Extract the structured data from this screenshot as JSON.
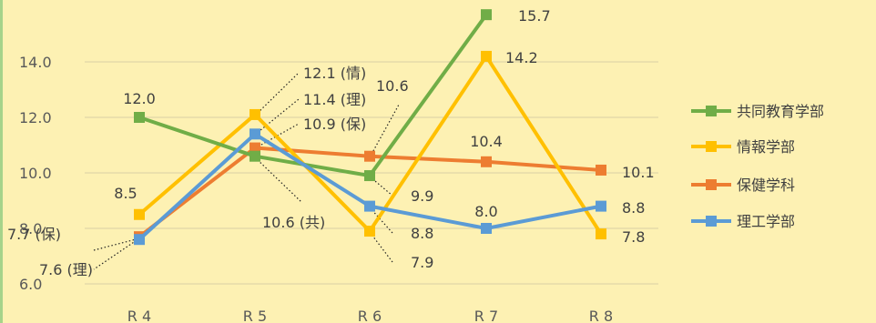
{
  "chart_data": {
    "type": "line",
    "categories": [
      "R 4",
      "R 5",
      "R 6",
      "R 7",
      "R 8"
    ],
    "ylim": [
      6.0,
      15.7
    ],
    "yticks": [
      "6.0",
      "8.0",
      "10.0",
      "12.0",
      "14.0"
    ],
    "grid": true,
    "legend_position": "right",
    "series": [
      {
        "name": "共同教育学部",
        "color": "#70ad47",
        "values": [
          12.0,
          10.6,
          9.9,
          15.7,
          null
        ]
      },
      {
        "name": "情報学部",
        "color": "#ffc000",
        "values": [
          8.5,
          12.1,
          7.9,
          14.2,
          7.8
        ]
      },
      {
        "name": "保健学科",
        "color": "#ed7d31",
        "values": [
          7.7,
          10.9,
          10.6,
          10.4,
          10.1
        ]
      },
      {
        "name": "理工学部",
        "color": "#5b9bd5",
        "values": [
          7.6,
          11.4,
          8.8,
          8.0,
          8.8
        ]
      }
    ],
    "labels": [
      {
        "text": "12.0"
      },
      {
        "text": "8.5"
      },
      {
        "text": "7.7 (保)"
      },
      {
        "text": "7.6 (理)"
      },
      {
        "text": "12.1 (情)"
      },
      {
        "text": "11.4 (理)"
      },
      {
        "text": "10.9 (保)"
      },
      {
        "text": "10.6 (共)"
      },
      {
        "text": "10.6"
      },
      {
        "text": "9.9"
      },
      {
        "text": "8.8"
      },
      {
        "text": "7.9"
      },
      {
        "text": "15.7"
      },
      {
        "text": "14.2"
      },
      {
        "text": "10.4"
      },
      {
        "text": "8.0"
      },
      {
        "text": "10.1"
      },
      {
        "text": "8.8"
      },
      {
        "text": "7.8"
      }
    ]
  }
}
